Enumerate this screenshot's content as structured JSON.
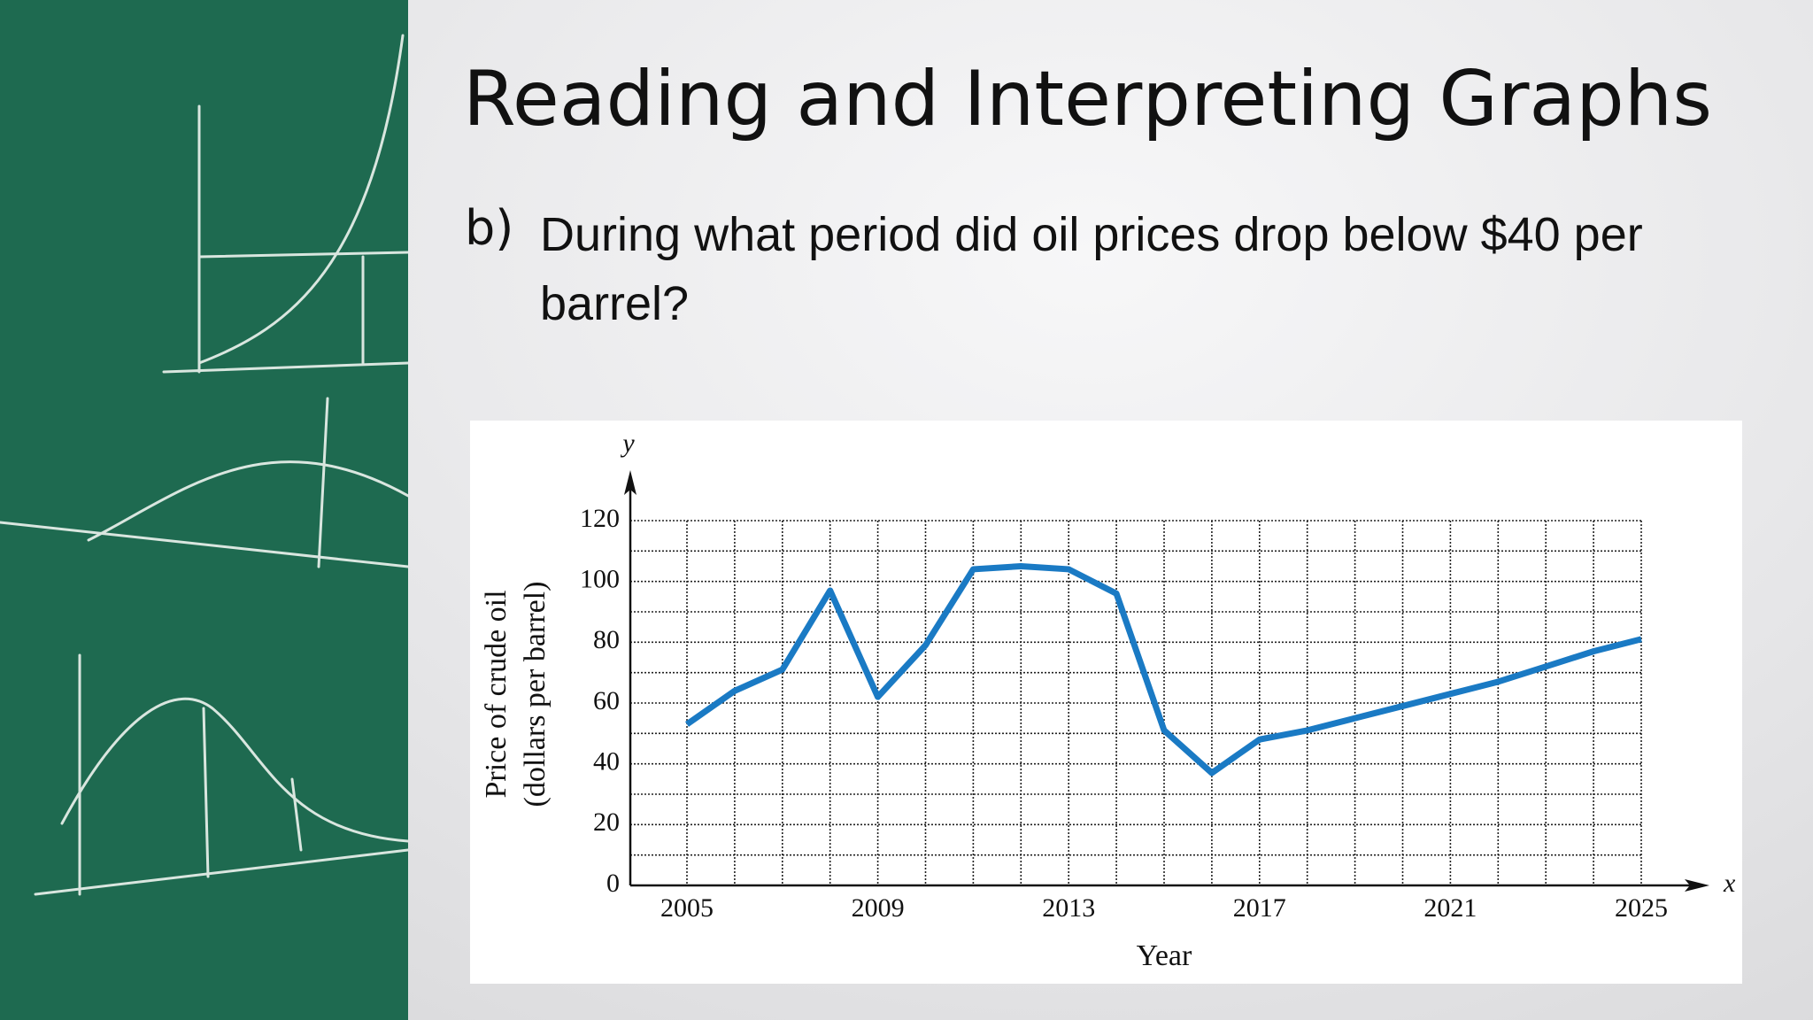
{
  "slide": {
    "title": "Reading and Interpreting Graphs",
    "question": {
      "label": "b)",
      "text": "During what period did oil prices drop below $40 per barrel?"
    }
  },
  "chart_data": {
    "type": "line",
    "xlabel": "Year",
    "ylabel": [
      "Price of crude oil",
      "(dollars per barrel)"
    ],
    "x_axis_letter": "x",
    "y_axis_letter": "y",
    "x": [
      2005,
      2006,
      2007,
      2008,
      2009,
      2010,
      2011,
      2012,
      2013,
      2014,
      2015,
      2016,
      2017,
      2018,
      2019,
      2020,
      2021,
      2022,
      2023,
      2024,
      2025
    ],
    "values": [
      53,
      64,
      71,
      97,
      62,
      79,
      104,
      105,
      104,
      96,
      51,
      37,
      48,
      51,
      55,
      59,
      63,
      67,
      72,
      77,
      81
    ],
    "color": "#1a7ac4",
    "xlim": [
      2005,
      2025
    ],
    "xticks": [
      2005,
      2009,
      2013,
      2017,
      2021,
      2025
    ],
    "ylim": [
      0,
      120
    ],
    "yticks": [
      0,
      20,
      40,
      60,
      80,
      100,
      120
    ],
    "y_minor_ticks": [
      10,
      30,
      50,
      70,
      90,
      110
    ],
    "grid": true
  }
}
